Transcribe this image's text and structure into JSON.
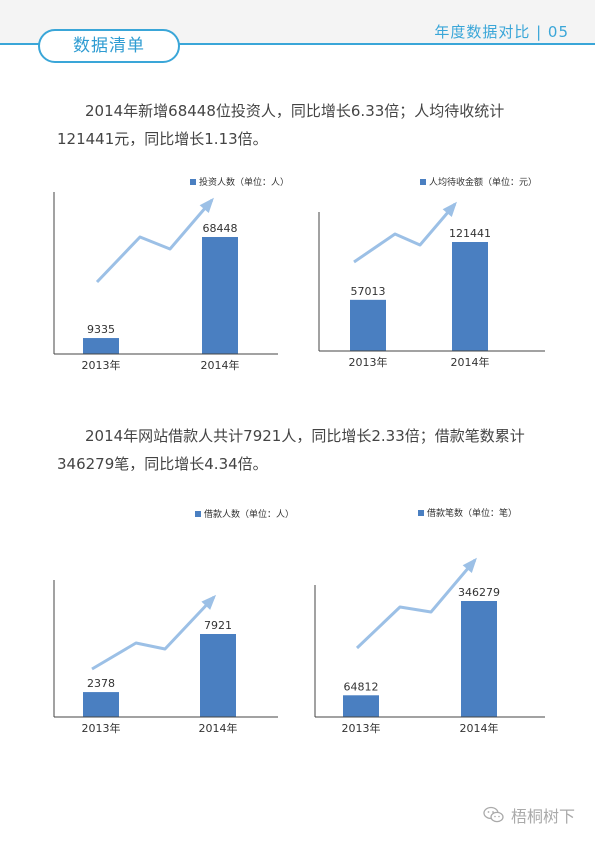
{
  "header": {
    "section_label": "数据清单",
    "title": "年度数据对比 | 05"
  },
  "paragraphs": [
    "2014年新增68448位投资人，同比增长6.33倍；人均待收统计121441元，同比增长1.13倍。",
    "2014年网站借款人共计7921人，同比增长2.33倍；借款笔数累计346279笔，同比增长4.34倍。"
  ],
  "colors": {
    "bar": "#4a7fc1",
    "arrow": "#9cc0e6",
    "accent": "#3aa6d8"
  },
  "chart_data": [
    {
      "type": "bar",
      "legend": "投资人数（单位：人）",
      "categories": [
        "2013年",
        "2014年"
      ],
      "values": [
        9335,
        68448
      ],
      "value_labels": [
        "9335",
        "68448"
      ]
    },
    {
      "type": "bar",
      "legend": "人均待收金额（单位：元）",
      "categories": [
        "2013年",
        "2014年"
      ],
      "values": [
        57013,
        121441
      ],
      "value_labels": [
        "57013",
        "121441"
      ]
    },
    {
      "type": "bar",
      "legend": "借款人数（单位：人）",
      "categories": [
        "2013年",
        "2014年"
      ],
      "values": [
        2378,
        7921
      ],
      "value_labels": [
        "2378",
        "7921"
      ]
    },
    {
      "type": "bar",
      "legend": "借款笔数（单位：笔）",
      "categories": [
        "2013年",
        "2014年"
      ],
      "values": [
        64812,
        346279
      ],
      "value_labels": [
        "64812",
        "346279"
      ]
    }
  ],
  "watermark": {
    "icon": "wechat-icon",
    "text": "梧桐树下"
  }
}
